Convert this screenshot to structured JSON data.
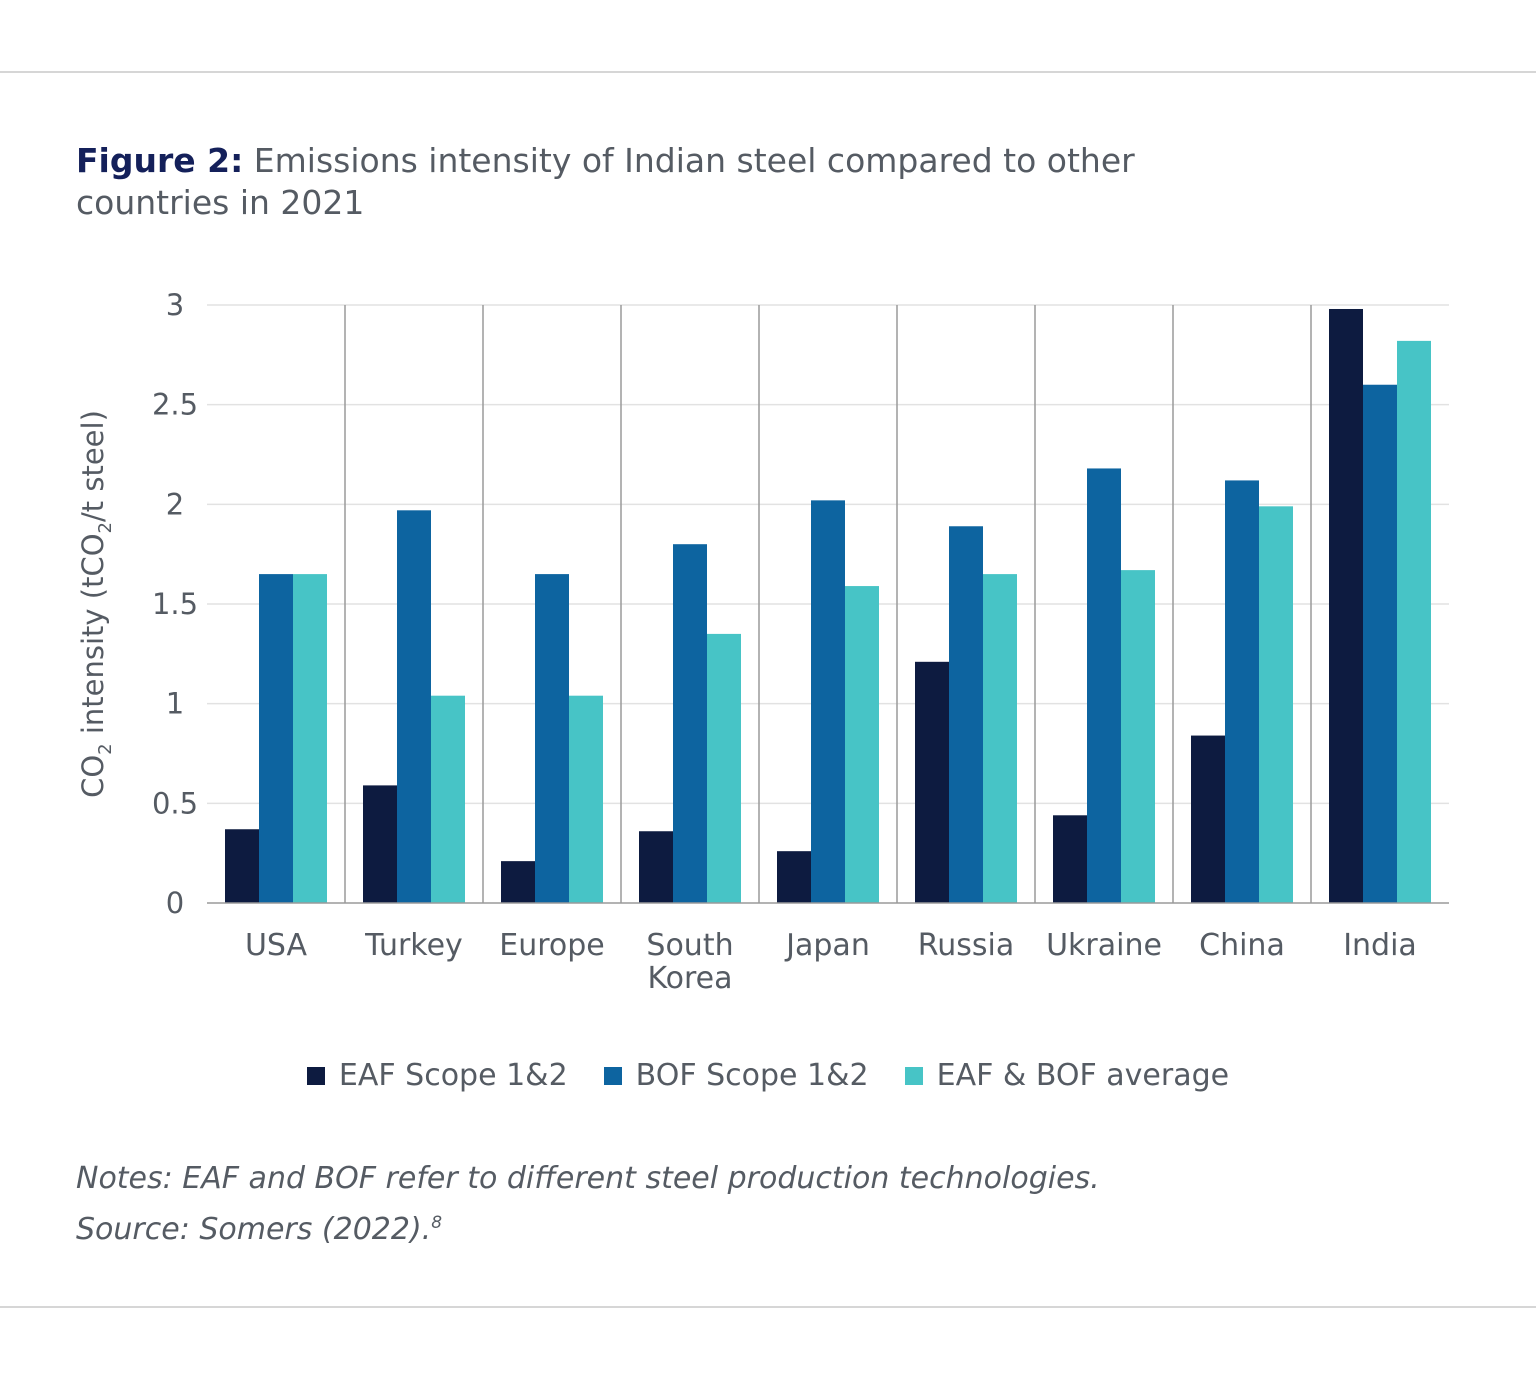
{
  "figure": {
    "label": "Figure 2:",
    "title": "Emissions intensity of Indian steel compared to other countries in 2021"
  },
  "notes": {
    "line1": "Notes: EAF and BOF refer to different steel production technologies.",
    "line2": "Source: Somers (2022).",
    "footnote_ref": "8"
  },
  "chart_data": {
    "type": "bar",
    "categories": [
      "USA",
      "Turkey",
      "Europe",
      "South Korea",
      "Japan",
      "Russia",
      "Ukraine",
      "China",
      "India"
    ],
    "category_lines": [
      [
        "USA"
      ],
      [
        "Turkey"
      ],
      [
        "Europe"
      ],
      [
        "South",
        "Korea"
      ],
      [
        "Japan"
      ],
      [
        "Russia"
      ],
      [
        "Ukraine"
      ],
      [
        "China"
      ],
      [
        "India"
      ]
    ],
    "series": [
      {
        "name": "EAF Scope 1&2",
        "color": "#0d1b40",
        "values": [
          0.37,
          0.59,
          0.21,
          0.36,
          0.26,
          1.21,
          0.44,
          0.84,
          2.98
        ]
      },
      {
        "name": "BOF Scope 1&2",
        "color": "#0d64a0",
        "values": [
          1.65,
          1.97,
          1.65,
          1.8,
          2.02,
          1.89,
          2.18,
          2.12,
          2.6
        ]
      },
      {
        "name": "EAF & BOF average",
        "color": "#47c4c6",
        "values": [
          1.65,
          1.04,
          1.04,
          1.35,
          1.59,
          1.65,
          1.67,
          1.99,
          2.82
        ]
      }
    ],
    "ylim": [
      0,
      3
    ],
    "yticks": [
      "0",
      "0.5",
      "1",
      "1.5",
      "2",
      "2.5",
      "3"
    ],
    "ytick_values": [
      0,
      0.5,
      1,
      1.5,
      2,
      2.5,
      3
    ],
    "ylabel": {
      "pre": "CO",
      "sub1": "2",
      "mid": " intensity (tCO",
      "sub2": "2",
      "post": "/t steel)"
    },
    "xlabel": "",
    "grid": true,
    "legend_position": "bottom"
  }
}
